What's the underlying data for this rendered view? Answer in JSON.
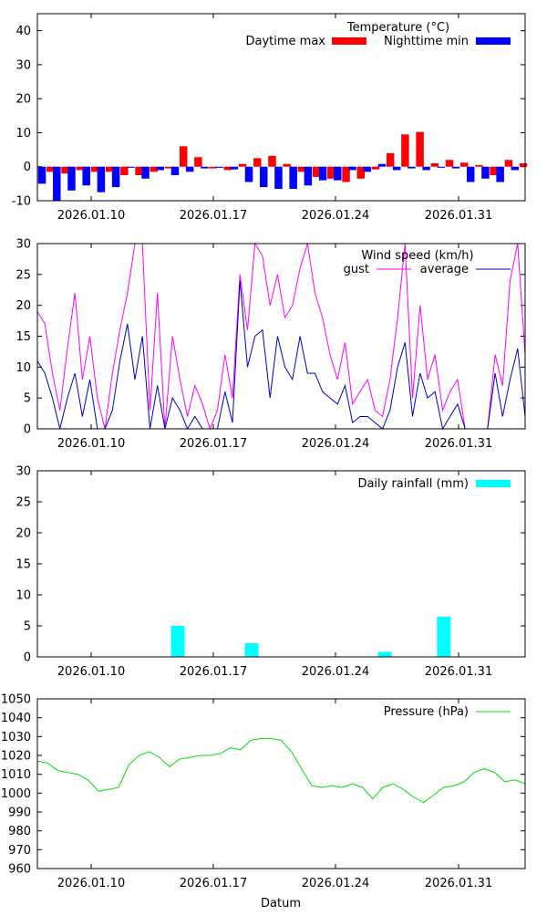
{
  "xlabel": "Datum",
  "chart_data": [
    {
      "type": "bar",
      "title": "Temperature (°C)",
      "ylim": [
        -10,
        45
      ],
      "yticks": [
        -10,
        0,
        10,
        20,
        30,
        40
      ],
      "xticks": [
        "2026.01.10",
        "2026.01.17",
        "2026.01.24",
        "2026.01.31"
      ],
      "legend_position": "top-right",
      "series": [
        {
          "name": "Daytime max",
          "color": "#ff0000",
          "values": [
            -1.5,
            -2.0,
            -1.0,
            -1.5,
            -1.5,
            -2.5,
            -2.5,
            -1.5,
            -0.5,
            6.0,
            2.8,
            -0.5,
            -1.0,
            0.8,
            2.5,
            3.2,
            0.8,
            -1.5,
            -3.0,
            -3.5,
            -4.5,
            -3.5,
            -0.8,
            4.0,
            9.5,
            10.2,
            1.0,
            2.0,
            1.2,
            0.5,
            -2.5,
            2.0,
            1.0
          ]
        },
        {
          "name": "Nighttime min",
          "color": "#0000ff",
          "values": [
            -5.0,
            -10.0,
            -7.0,
            -5.5,
            -7.5,
            -6.0,
            -0.3,
            -3.5,
            -1.0,
            -2.5,
            -1.5,
            -0.5,
            -0.3,
            -0.8,
            -4.5,
            -6.0,
            -6.5,
            -6.5,
            -5.5,
            -4.0,
            -4.0,
            -1.0,
            -1.5,
            0.8,
            -1.0,
            -0.5,
            -1.0,
            -0.3,
            -0.5,
            -4.5,
            -3.5,
            -4.5,
            -1.0
          ]
        }
      ]
    },
    {
      "type": "line",
      "title": "Wind speed (km/h)",
      "ylim": [
        0,
        30
      ],
      "yticks": [
        0,
        5,
        10,
        15,
        20,
        25,
        30
      ],
      "xticks": [
        "2026.01.10",
        "2026.01.17",
        "2026.01.24",
        "2026.01.31"
      ],
      "legend_position": "top-right",
      "series": [
        {
          "name": "gust",
          "color": "#ff00ff",
          "values": [
            19,
            17,
            9,
            3,
            13,
            22,
            8,
            15,
            5,
            0,
            9,
            16,
            22,
            30,
            30,
            3,
            22,
            0,
            15,
            8,
            2,
            7,
            4,
            0,
            3,
            12,
            5,
            25,
            16,
            30,
            28,
            20,
            25,
            18,
            20,
            26,
            30,
            22,
            18,
            12,
            8,
            14,
            4,
            6,
            8,
            3,
            2,
            8,
            18,
            30,
            5,
            20,
            8,
            12,
            3,
            6,
            8,
            0,
            0,
            0,
            0,
            12,
            7,
            24,
            30,
            12
          ]
        },
        {
          "name": "average",
          "color": "#0000c0",
          "values": [
            11,
            9,
            5,
            0,
            5,
            9,
            2,
            8,
            0,
            0,
            3,
            11,
            17,
            8,
            15,
            0,
            7,
            0,
            5,
            3,
            0,
            2,
            0,
            0,
            0,
            6,
            1,
            24,
            10,
            15,
            16,
            5,
            15,
            10,
            8,
            15,
            9,
            9,
            6,
            5,
            4,
            7,
            1,
            2,
            2,
            1,
            0,
            3,
            10,
            14,
            2,
            9,
            5,
            6,
            0,
            2,
            4,
            0,
            0,
            0,
            0,
            9,
            2,
            8,
            13,
            2
          ]
        }
      ]
    },
    {
      "type": "bar",
      "title": "Daily rainfall (mm)",
      "ylim": [
        0,
        30
      ],
      "yticks": [
        0,
        5,
        10,
        15,
        20,
        25,
        30
      ],
      "xticks": [
        "2026.01.10",
        "2026.01.17",
        "2026.01.24",
        "2026.01.31"
      ],
      "legend_position": "top-right",
      "series": [
        {
          "name": "Daily rainfall (mm)",
          "color": "#00ffff",
          "values": [
            0,
            0,
            0,
            0,
            0,
            0,
            0,
            0,
            0,
            5.0,
            0,
            0,
            0,
            0,
            2.2,
            0,
            0,
            0,
            0,
            0,
            0,
            0,
            0,
            0.8,
            0,
            0,
            0,
            6.5,
            0,
            0,
            0,
            0,
            0
          ]
        }
      ]
    },
    {
      "type": "line",
      "title": "Pressure (hPa)",
      "ylim": [
        960,
        1050
      ],
      "yticks": [
        960,
        970,
        980,
        990,
        1000,
        1010,
        1020,
        1030,
        1040,
        1050
      ],
      "xticks": [
        "2026.01.10",
        "2026.01.17",
        "2026.01.24",
        "2026.01.31"
      ],
      "legend_position": "top-right",
      "series": [
        {
          "name": "Pressure (hPa)",
          "color": "#00e000",
          "values": [
            1017,
            1016,
            1012,
            1011,
            1010,
            1007,
            1001,
            1002,
            1003,
            1015,
            1020,
            1022,
            1019,
            1014,
            1018,
            1019,
            1020,
            1020,
            1021,
            1024,
            1023,
            1028,
            1029,
            1029,
            1028,
            1022,
            1013,
            1004,
            1003,
            1004,
            1003,
            1005,
            1003,
            997,
            1003,
            1005,
            1002,
            998,
            995,
            999,
            1003,
            1004,
            1006,
            1011,
            1013,
            1011,
            1006,
            1007,
            1005
          ]
        }
      ]
    }
  ]
}
